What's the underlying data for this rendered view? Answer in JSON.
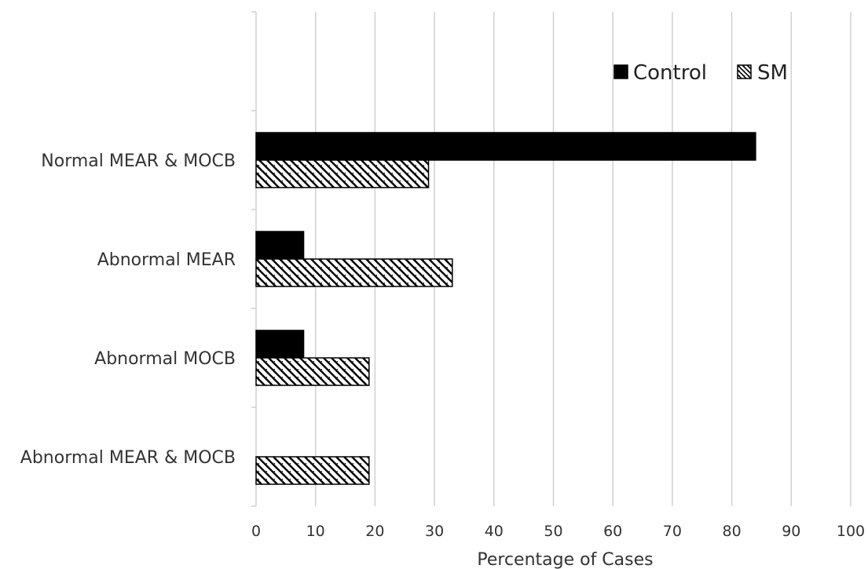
{
  "chart_data": {
    "type": "bar",
    "orientation": "horizontal",
    "categories": [
      "Normal MEAR & MOCB",
      "Abnormal MEAR",
      "Abnormal MOCB",
      "Abnormal MEAR & MOCB"
    ],
    "series": [
      {
        "name": "Control",
        "values": [
          84,
          8,
          8,
          0
        ],
        "fill": "solid",
        "color": "#000000"
      },
      {
        "name": "SM",
        "values": [
          29,
          33,
          19,
          19
        ],
        "fill": "diagonal-hatch",
        "color": "#000000"
      }
    ],
    "title": "",
    "xlabel": "Percentage of Cases",
    "ylabel": "",
    "xlim": [
      0,
      100
    ],
    "xticks": [
      0,
      10,
      20,
      30,
      40,
      50,
      60,
      70,
      80,
      90,
      100
    ],
    "grid": "vertical",
    "legend_position": "top-right"
  }
}
